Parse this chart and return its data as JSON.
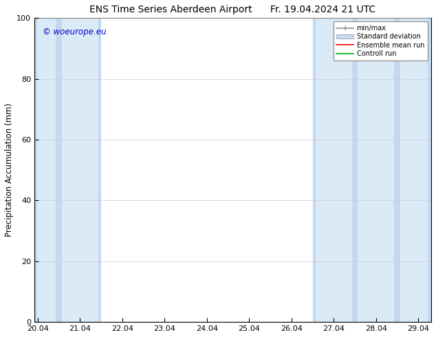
{
  "title_left": "ENS Time Series Aberdeen Airport",
  "title_right": "Fr. 19.04.2024 21 UTC",
  "ylabel": "Precipitation Accumulation (mm)",
  "watermark": "© woeurope.eu",
  "ylim": [
    0,
    100
  ],
  "yticks": [
    0,
    20,
    40,
    60,
    80,
    100
  ],
  "xtick_labels": [
    "20.04",
    "21.04",
    "22.04",
    "23.04",
    "24.04",
    "25.04",
    "26.04",
    "27.04",
    "28.04",
    "29.04"
  ],
  "xtick_positions": [
    0,
    1,
    2,
    3,
    4,
    5,
    6,
    7,
    8,
    9
  ],
  "xlim_left": -0.08,
  "xlim_right": 9.3,
  "shaded_days": [
    0,
    1,
    7,
    8,
    9
  ],
  "minmax_color": "#c5d9ee",
  "std_color": "#daeaf7",
  "background_color": "#ffffff",
  "legend_labels": [
    "min/max",
    "Standard deviation",
    "Ensemble mean run",
    "Controll run"
  ],
  "minmax_legend_color": "#909090",
  "std_legend_color": "#c8dff0",
  "ensemble_color": "#ff0000",
  "control_color": "#00aa00",
  "title_fontsize": 10,
  "watermark_color": "#0000cc",
  "grid_color": "#cccccc",
  "tick_label_fontsize": 8,
  "ylabel_fontsize": 8.5
}
